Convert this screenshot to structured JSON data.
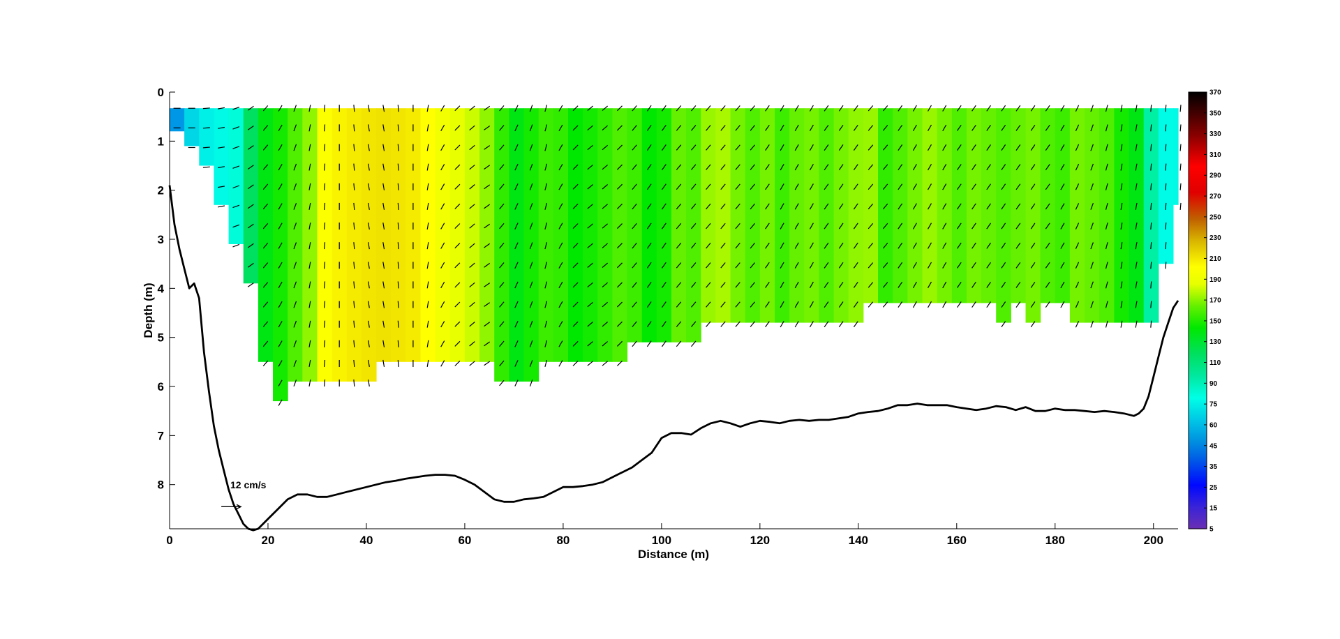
{
  "chart_data": {
    "type": "heatmap",
    "title": "",
    "xlabel": "Distance (m)",
    "ylabel": "Depth (m)",
    "xlim": [
      0,
      205
    ],
    "ylim": [
      0,
      8.9
    ],
    "y_reversed": true,
    "xticks": [
      0,
      20,
      40,
      60,
      80,
      100,
      120,
      140,
      160,
      180,
      200
    ],
    "yticks": [
      0,
      1,
      2,
      3,
      4,
      5,
      6,
      7,
      8
    ],
    "grid": false,
    "legend": "none",
    "colorbar": {
      "ticks": [
        5,
        15,
        25,
        35,
        45,
        60,
        75,
        90,
        110,
        130,
        150,
        170,
        190,
        210,
        230,
        250,
        270,
        290,
        310,
        330,
        350,
        370
      ],
      "range": [
        5,
        370
      ],
      "colors": [
        "#6a2fb3",
        "#3a23d8",
        "#0008ff",
        "#005de6",
        "#00c8e6",
        "#00ffe6",
        "#00e060",
        "#00e800",
        "#64f000",
        "#e6ff00",
        "#ffff00",
        "#d8b400",
        "#c06000",
        "#ff0000",
        "#8b0000",
        "#000000"
      ]
    },
    "quiver_reference": {
      "label": "12 cm/s",
      "speed_cm_s": 12
    },
    "columns": {
      "x": [
        0,
        3,
        6,
        9,
        12,
        15,
        18,
        21,
        24,
        27,
        30,
        33,
        36,
        39,
        42,
        45,
        48,
        51,
        54,
        57,
        60,
        63,
        66,
        69,
        72,
        75,
        78,
        81,
        84,
        87,
        90,
        93,
        96,
        99,
        102,
        105,
        108,
        111,
        114,
        117,
        120,
        123,
        126,
        129,
        132,
        135,
        138,
        141,
        144,
        147,
        150,
        153,
        156,
        159,
        162,
        165,
        168,
        171,
        174,
        177,
        180,
        183,
        186,
        189,
        192,
        195,
        198,
        201,
        204
      ],
      "value": [
        70,
        100,
        118,
        126,
        132,
        150,
        158,
        162,
        168,
        175,
        198,
        205,
        208,
        210,
        212,
        210,
        208,
        200,
        192,
        186,
        182,
        175,
        165,
        158,
        162,
        166,
        165,
        160,
        162,
        165,
        168,
        166,
        160,
        162,
        170,
        168,
        176,
        178,
        172,
        168,
        172,
        166,
        170,
        172,
        168,
        172,
        175,
        176,
        165,
        168,
        172,
        176,
        172,
        168,
        172,
        170,
        168,
        170,
        172,
        168,
        166,
        172,
        170,
        168,
        162,
        158,
        140,
        128,
        126
      ],
      "bottom": [
        0.8,
        1.1,
        1.5,
        2.3,
        3.1,
        3.9,
        5.5,
        6.3,
        5.9,
        5.9,
        5.9,
        5.9,
        5.9,
        5.9,
        5.5,
        5.5,
        5.5,
        5.5,
        5.5,
        5.5,
        5.5,
        5.5,
        5.9,
        5.9,
        5.9,
        5.5,
        5.5,
        5.5,
        5.5,
        5.5,
        5.5,
        5.1,
        5.1,
        5.1,
        5.1,
        5.1,
        4.7,
        4.7,
        4.7,
        4.7,
        4.7,
        4.7,
        4.7,
        4.7,
        4.7,
        4.7,
        4.7,
        4.3,
        4.3,
        4.3,
        4.3,
        4.3,
        4.3,
        4.3,
        4.3,
        4.3,
        4.7,
        4.3,
        4.7,
        4.3,
        4.3,
        4.7,
        4.7,
        4.7,
        4.7,
        4.7,
        4.7,
        3.5,
        2.3
      ],
      "direction_deg": [
        0,
        0,
        5,
        10,
        20,
        35,
        50,
        60,
        70,
        80,
        85,
        90,
        95,
        100,
        100,
        95,
        90,
        80,
        60,
        45,
        40,
        35,
        50,
        65,
        70,
        75,
        60,
        45,
        40,
        40,
        45,
        50,
        55,
        55,
        50,
        50,
        50,
        50,
        50,
        50,
        55,
        60,
        60,
        60,
        55,
        55,
        55,
        50,
        50,
        55,
        60,
        60,
        60,
        55,
        55,
        55,
        55,
        55,
        55,
        55,
        60,
        65,
        70,
        75,
        80,
        80,
        85,
        85,
        85
      ]
    },
    "bathymetry": {
      "x": [
        0,
        1,
        2,
        3,
        4,
        5,
        6,
        7,
        8,
        9,
        10,
        11,
        12,
        13,
        14,
        15,
        16,
        17,
        18,
        19,
        20,
        22,
        24,
        26,
        28,
        30,
        32,
        34,
        36,
        38,
        40,
        42,
        44,
        46,
        48,
        50,
        52,
        54,
        56,
        58,
        60,
        62,
        64,
        66,
        68,
        70,
        72,
        74,
        76,
        78,
        80,
        82,
        84,
        86,
        88,
        90,
        92,
        94,
        96,
        98,
        100,
        102,
        104,
        106,
        108,
        110,
        112,
        114,
        116,
        118,
        120,
        122,
        124,
        126,
        128,
        130,
        132,
        134,
        136,
        138,
        140,
        142,
        144,
        146,
        148,
        150,
        152,
        154,
        156,
        158,
        160,
        162,
        164,
        166,
        168,
        170,
        172,
        174,
        176,
        178,
        180,
        182,
        184,
        186,
        188,
        190,
        192,
        194,
        196,
        197,
        198,
        199,
        200,
        201,
        202,
        203,
        204,
        205
      ],
      "depth": [
        1.9,
        2.7,
        3.2,
        3.6,
        4.0,
        3.9,
        4.2,
        5.3,
        6.1,
        6.8,
        7.3,
        7.7,
        8.1,
        8.4,
        8.6,
        8.8,
        8.9,
        8.93,
        8.9,
        8.8,
        8.7,
        8.5,
        8.3,
        8.2,
        8.2,
        8.25,
        8.25,
        8.2,
        8.15,
        8.1,
        8.05,
        8.0,
        7.95,
        7.92,
        7.88,
        7.85,
        7.82,
        7.8,
        7.8,
        7.82,
        7.9,
        8.0,
        8.15,
        8.3,
        8.35,
        8.35,
        8.3,
        8.28,
        8.25,
        8.15,
        8.05,
        8.05,
        8.03,
        8.0,
        7.95,
        7.85,
        7.75,
        7.65,
        7.5,
        7.35,
        7.05,
        6.95,
        6.95,
        6.98,
        6.85,
        6.75,
        6.7,
        6.75,
        6.82,
        6.75,
        6.7,
        6.72,
        6.75,
        6.7,
        6.68,
        6.7,
        6.68,
        6.68,
        6.65,
        6.62,
        6.55,
        6.52,
        6.5,
        6.45,
        6.38,
        6.38,
        6.35,
        6.38,
        6.38,
        6.38,
        6.42,
        6.45,
        6.48,
        6.45,
        6.4,
        6.42,
        6.48,
        6.42,
        6.5,
        6.5,
        6.45,
        6.48,
        6.48,
        6.5,
        6.52,
        6.5,
        6.52,
        6.55,
        6.6,
        6.55,
        6.45,
        6.2,
        5.8,
        5.4,
        5.0,
        4.7,
        4.4,
        4.25
      ]
    }
  }
}
